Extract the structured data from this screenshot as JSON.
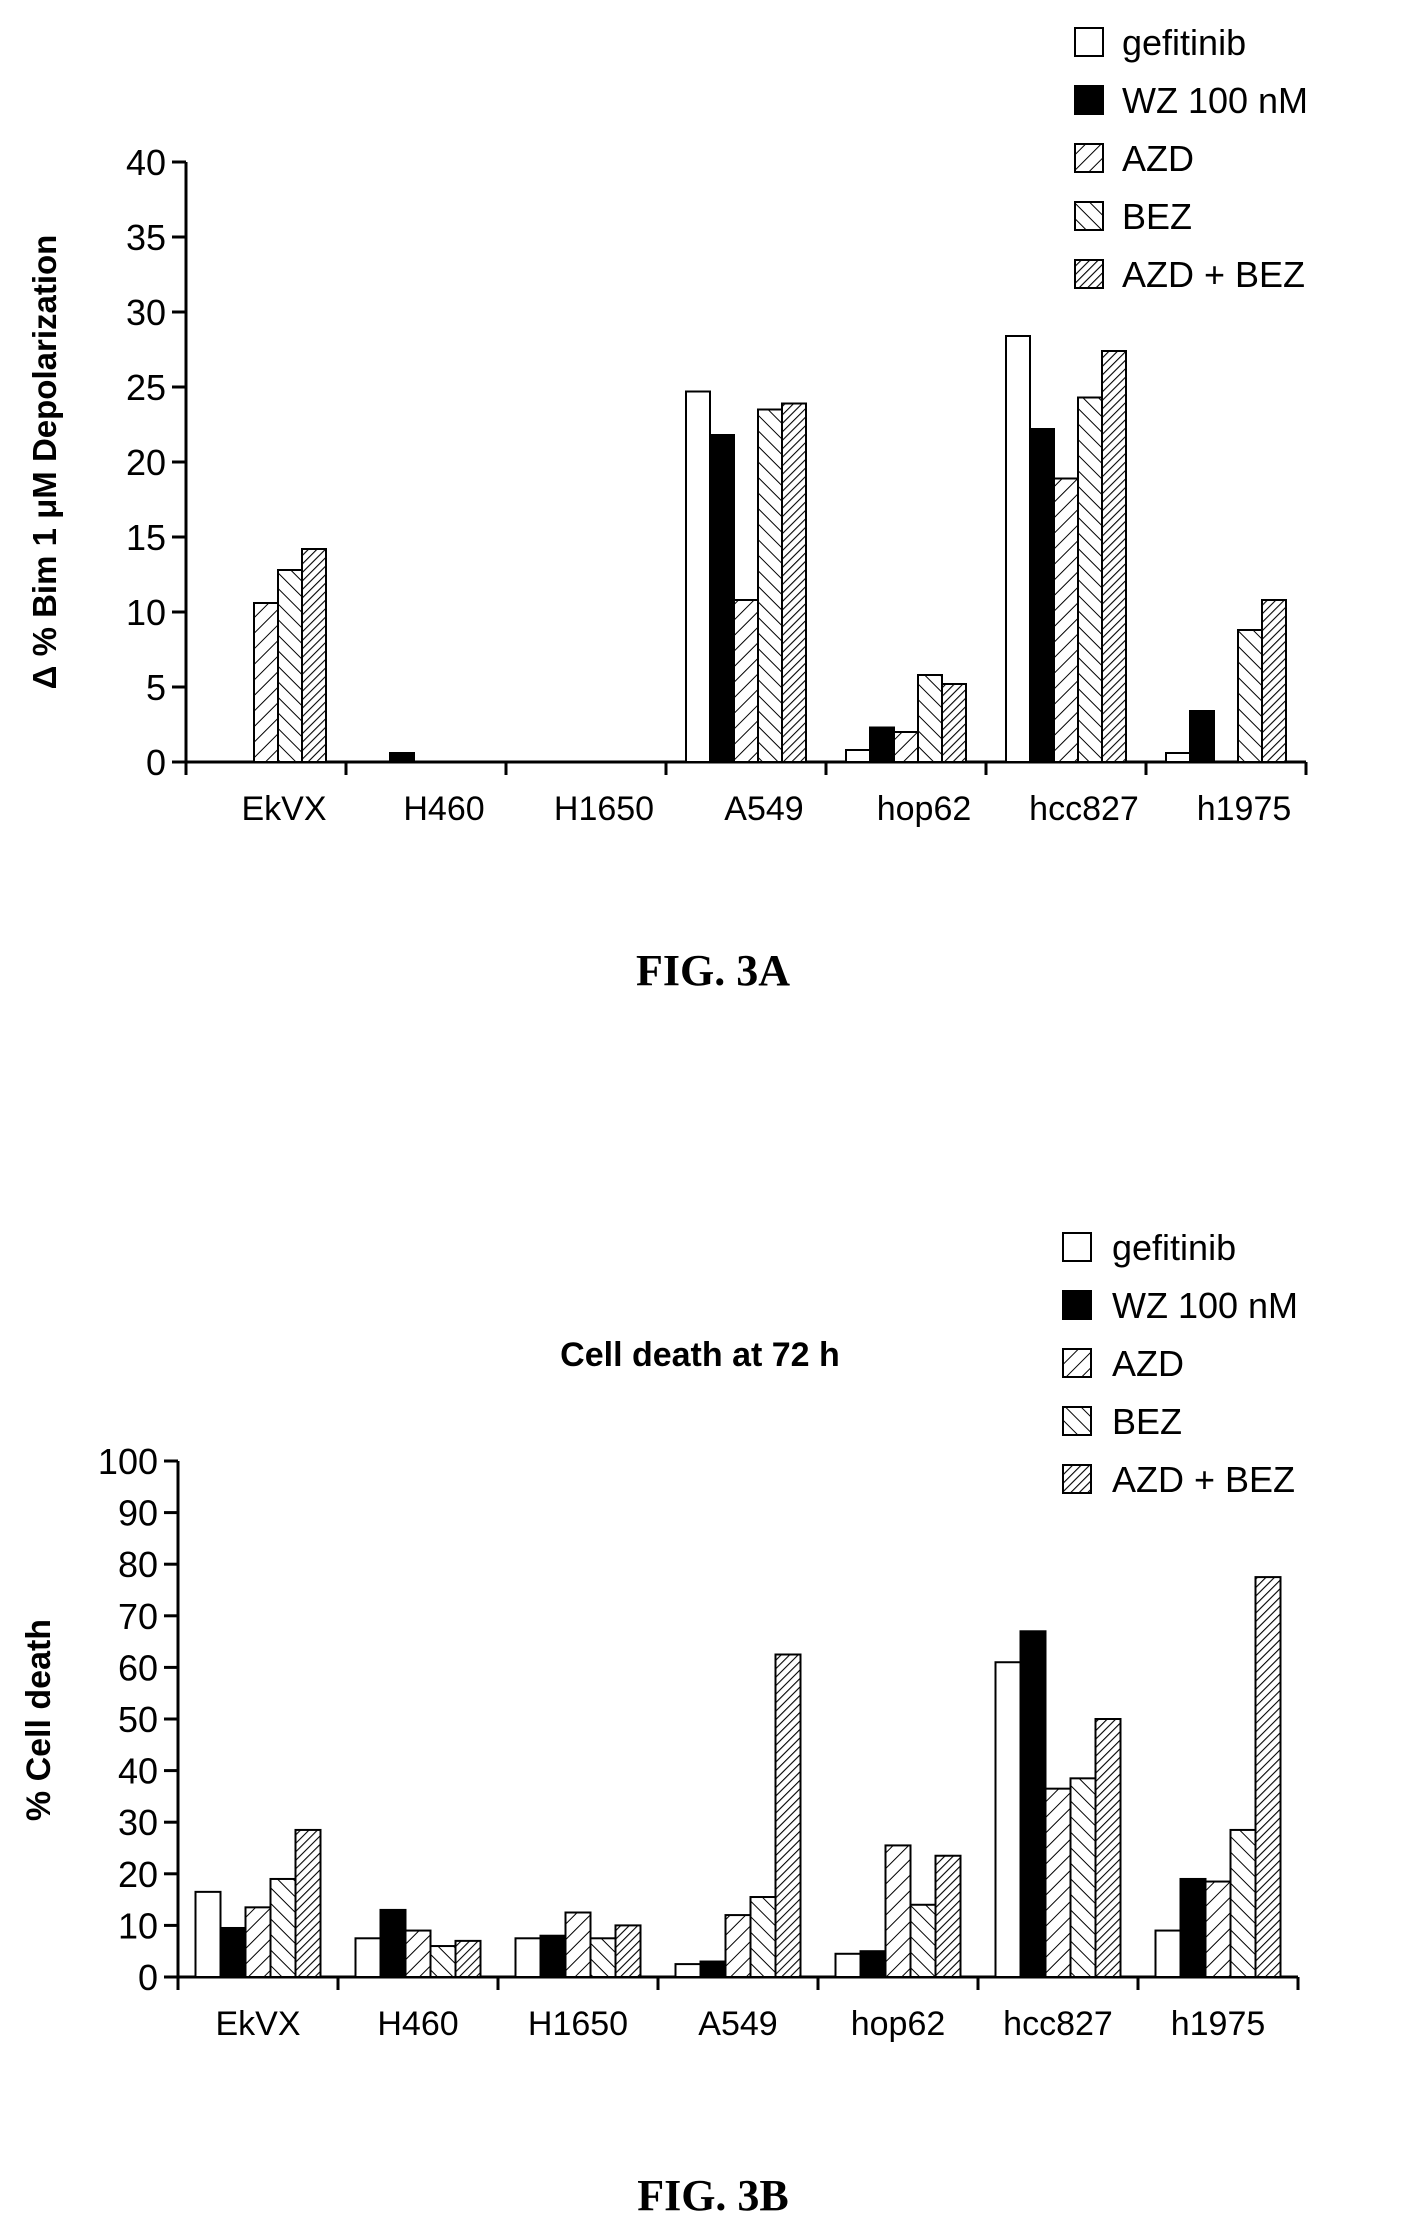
{
  "chart_data": [
    {
      "type": "bar",
      "caption": "FIG. 3A",
      "title": "",
      "xlabel": "",
      "ylabel": "Δ % Bim 1 μM Depolarization",
      "ylim": [
        0,
        40
      ],
      "yticks": [
        0,
        5,
        10,
        15,
        20,
        25,
        30,
        35,
        40
      ],
      "legend_position": "top-right",
      "categories": [
        "EkVX",
        "H460",
        "H1650",
        "A549",
        "hop62",
        "hcc827",
        "h1975"
      ],
      "series": [
        {
          "name": "gefitinib",
          "pattern": "white",
          "values": [
            0,
            0,
            0,
            24.7,
            0.8,
            28.4,
            0.6
          ]
        },
        {
          "name": "WZ 100 nM",
          "pattern": "black",
          "values": [
            0,
            0.6,
            0,
            21.8,
            2.3,
            22.2,
            3.4
          ]
        },
        {
          "name": "AZD",
          "pattern": "diag-up",
          "values": [
            10.6,
            0,
            0,
            10.8,
            2.0,
            18.9,
            0
          ]
        },
        {
          "name": "BEZ",
          "pattern": "diag-down",
          "values": [
            12.8,
            0,
            0,
            23.5,
            5.8,
            24.3,
            8.8
          ]
        },
        {
          "name": "AZD + BEZ",
          "pattern": "dense-up",
          "values": [
            14.2,
            0,
            0,
            23.9,
            5.2,
            27.4,
            10.8
          ]
        }
      ]
    },
    {
      "type": "bar",
      "caption": "FIG. 3B",
      "title": "Cell death at 72 h",
      "xlabel": "",
      "ylabel": "% Cell death",
      "ylim": [
        0,
        100
      ],
      "yticks": [
        0,
        10,
        20,
        30,
        40,
        50,
        60,
        70,
        80,
        90,
        100
      ],
      "legend_position": "top-right",
      "categories": [
        "EkVX",
        "H460",
        "H1650",
        "A549",
        "hop62",
        "hcc827",
        "h1975"
      ],
      "series": [
        {
          "name": "gefitinib",
          "pattern": "white",
          "values": [
            16.5,
            7.5,
            7.5,
            2.5,
            4.5,
            61.0,
            9.0
          ]
        },
        {
          "name": "WZ 100 nM",
          "pattern": "black",
          "values": [
            9.5,
            13.0,
            8.0,
            3.0,
            5.0,
            67.0,
            19.0
          ]
        },
        {
          "name": "AZD",
          "pattern": "diag-up",
          "values": [
            13.5,
            9.0,
            12.5,
            12.0,
            25.5,
            36.5,
            18.5
          ]
        },
        {
          "name": "BEZ",
          "pattern": "diag-down",
          "values": [
            19.0,
            6.0,
            7.5,
            15.5,
            14.0,
            38.5,
            28.5
          ]
        },
        {
          "name": "AZD + BEZ",
          "pattern": "dense-up",
          "values": [
            28.5,
            7.0,
            10.0,
            62.5,
            23.5,
            50.0,
            77.5
          ]
        }
      ]
    }
  ]
}
